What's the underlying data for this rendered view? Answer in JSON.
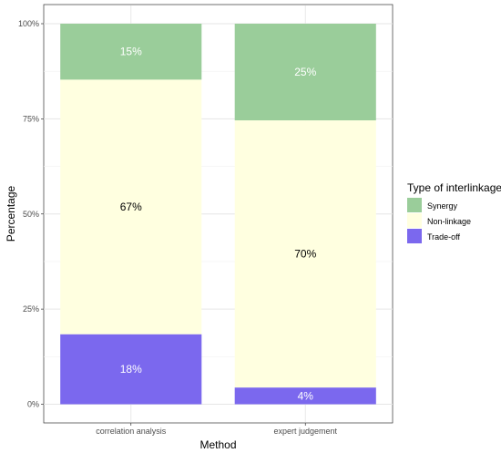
{
  "chart_data": {
    "type": "bar",
    "stacked": true,
    "percent": true,
    "xlabel": "Method",
    "ylabel": "Percentage",
    "categories": [
      "correlation analysis",
      "expert judgement"
    ],
    "series": [
      {
        "name": "Trade-off",
        "values": [
          18.4,
          4.4
        ],
        "labels": [
          "18%",
          "4%"
        ],
        "color": "#7b68ee",
        "label_color": "#ffffff"
      },
      {
        "name": "Non-linkage",
        "values": [
          66.9,
          70.2
        ],
        "labels": [
          "67%",
          "70%"
        ],
        "color": "#ffffe0",
        "label_color": "#000000"
      },
      {
        "name": "Synergy",
        "values": [
          14.7,
          25.4
        ],
        "labels": [
          "15%",
          "25%"
        ],
        "color": "#9acd9a",
        "label_color": "#ffffff"
      }
    ],
    "ylim": [
      0,
      100
    ],
    "yticks": [
      {
        "value": 0,
        "label": "0%"
      },
      {
        "value": 25,
        "label": "25%"
      },
      {
        "value": 50,
        "label": "50%"
      },
      {
        "value": 75,
        "label": "75%"
      },
      {
        "value": 100,
        "label": "100%"
      }
    ],
    "grid": true,
    "legend": {
      "title": "Type of interlinkage",
      "position": "right",
      "order": [
        "Synergy",
        "Non-linkage",
        "Trade-off"
      ]
    }
  }
}
